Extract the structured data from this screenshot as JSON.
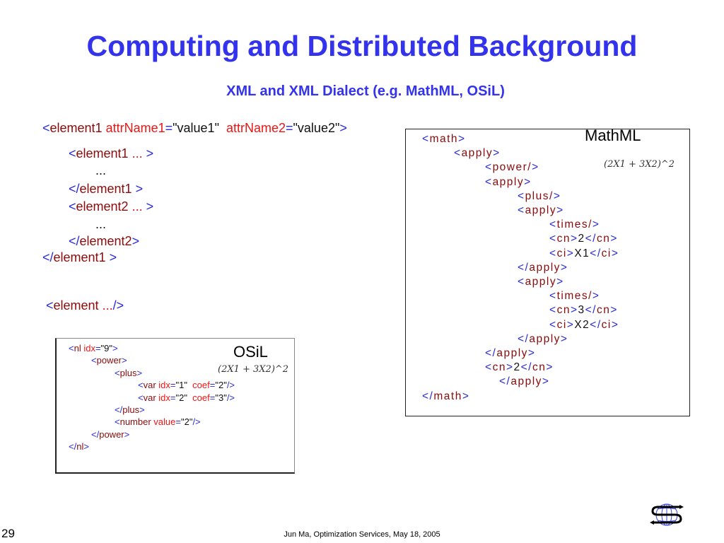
{
  "title": "Computing and  Distributed Background",
  "subtitle": "XML and XML Dialect (e.g. MathML, OSiL)",
  "generic_xml": {
    "lines": [
      [
        [
          "b",
          "<"
        ],
        [
          "t",
          "element1 "
        ],
        [
          "a",
          "attrName1"
        ],
        [
          "b",
          "="
        ],
        [
          "v",
          "\"value1\"  "
        ],
        [
          "a",
          "attrName2"
        ],
        [
          "b",
          "="
        ],
        [
          "v",
          "\"value2\""
        ],
        [
          "b",
          ">"
        ]
      ],
      [
        [
          "b",
          "<"
        ],
        [
          "t",
          "element1 "
        ],
        [
          "a",
          "..."
        ],
        [
          "b",
          " >"
        ]
      ],
      [
        [
          "v",
          "..."
        ]
      ],
      [
        [
          "b",
          "</"
        ],
        [
          "t",
          "element1"
        ],
        [
          "b",
          " >"
        ]
      ],
      [
        [
          "b",
          "<"
        ],
        [
          "t",
          "element2 "
        ],
        [
          "a",
          "..."
        ],
        [
          "b",
          " >"
        ]
      ],
      [
        [
          "v",
          "..."
        ]
      ],
      [
        [
          "b",
          "</"
        ],
        [
          "t",
          "element2"
        ],
        [
          "b",
          ">"
        ]
      ],
      [
        [
          "b",
          "</"
        ],
        [
          "t",
          "element1"
        ],
        [
          "b",
          " >"
        ]
      ],
      [
        [
          "b",
          "<"
        ],
        [
          "t",
          "element "
        ],
        [
          "a",
          "..."
        ],
        [
          "b",
          "/>"
        ]
      ]
    ]
  },
  "osil": {
    "label": "OSiL",
    "formula": "(2X1 + 3X2)^2",
    "lines": [
      [
        [
          "b",
          "<"
        ],
        [
          "t",
          "nl "
        ],
        [
          "a",
          "idx"
        ],
        [
          "b",
          "="
        ],
        [
          "v",
          "\"9\""
        ],
        [
          "b",
          ">"
        ]
      ],
      [
        [
          "b",
          "<"
        ],
        [
          "t",
          "power"
        ],
        [
          "b",
          ">"
        ]
      ],
      [
        [
          "b",
          "<"
        ],
        [
          "t",
          "plus"
        ],
        [
          "b",
          ">"
        ]
      ],
      [
        [
          "b",
          "<"
        ],
        [
          "t",
          "var "
        ],
        [
          "a",
          "idx"
        ],
        [
          "b",
          "="
        ],
        [
          "v",
          "\"1\"  "
        ],
        [
          "a",
          "coef"
        ],
        [
          "b",
          "="
        ],
        [
          "v",
          "\"2\""
        ],
        [
          "b",
          "/>"
        ]
      ],
      [
        [
          "b",
          "<"
        ],
        [
          "t",
          "var "
        ],
        [
          "a",
          "idx"
        ],
        [
          "b",
          "="
        ],
        [
          "v",
          "\"2\"  "
        ],
        [
          "a",
          "coef"
        ],
        [
          "b",
          "="
        ],
        [
          "v",
          "\"3\""
        ],
        [
          "b",
          "/>"
        ]
      ],
      [
        [
          "b",
          "</"
        ],
        [
          "t",
          "plus"
        ],
        [
          "b",
          ">"
        ]
      ],
      [
        [
          "b",
          "<"
        ],
        [
          "t",
          "number "
        ],
        [
          "a",
          "value"
        ],
        [
          "b",
          "="
        ],
        [
          "v",
          "\"2\""
        ],
        [
          "b",
          "/>"
        ]
      ],
      [
        [
          "b",
          "</"
        ],
        [
          "t",
          "power"
        ],
        [
          "b",
          ">"
        ]
      ],
      [
        [
          "b",
          "</"
        ],
        [
          "t",
          "nl"
        ],
        [
          "b",
          ">"
        ]
      ]
    ]
  },
  "mathml": {
    "label": "MathML",
    "formula": "(2X1 + 3X2)^2",
    "lines": [
      [
        [
          "b",
          "<"
        ],
        [
          "t",
          "math"
        ],
        [
          "b",
          ">"
        ]
      ],
      [
        [
          "b",
          "<"
        ],
        [
          "t",
          "apply"
        ],
        [
          "b",
          ">"
        ]
      ],
      [
        [
          "b",
          "<"
        ],
        [
          "t",
          "power/"
        ],
        [
          "b",
          ">"
        ]
      ],
      [
        [
          "b",
          "<"
        ],
        [
          "t",
          "apply"
        ],
        [
          "b",
          ">"
        ]
      ],
      [
        [
          "b",
          "<"
        ],
        [
          "t",
          "plus/"
        ],
        [
          "b",
          ">"
        ]
      ],
      [
        [
          "b",
          "<"
        ],
        [
          "t",
          "apply"
        ],
        [
          "b",
          ">"
        ]
      ],
      [
        [
          "b",
          "<"
        ],
        [
          "t",
          "times/"
        ],
        [
          "b",
          ">"
        ]
      ],
      [
        [
          "b",
          "<"
        ],
        [
          "t",
          "cn"
        ],
        [
          "b",
          ">"
        ],
        [
          "v",
          "2"
        ],
        [
          "b",
          "</"
        ],
        [
          "t",
          "cn"
        ],
        [
          "b",
          ">"
        ]
      ],
      [
        [
          "b",
          "<"
        ],
        [
          "t",
          "ci"
        ],
        [
          "b",
          ">"
        ],
        [
          "v",
          "X1"
        ],
        [
          "b",
          "</"
        ],
        [
          "t",
          "ci"
        ],
        [
          "b",
          ">"
        ]
      ],
      [
        [
          "b",
          "</"
        ],
        [
          "t",
          "apply"
        ],
        [
          "b",
          ">"
        ]
      ],
      [
        [
          "b",
          "<"
        ],
        [
          "t",
          "apply"
        ],
        [
          "b",
          ">"
        ]
      ],
      [
        [
          "b",
          "<"
        ],
        [
          "t",
          "times/"
        ],
        [
          "b",
          ">"
        ]
      ],
      [
        [
          "b",
          "<"
        ],
        [
          "t",
          "cn"
        ],
        [
          "b",
          ">"
        ],
        [
          "v",
          "3"
        ],
        [
          "b",
          "</"
        ],
        [
          "t",
          "cn"
        ],
        [
          "b",
          ">"
        ]
      ],
      [
        [
          "b",
          "<"
        ],
        [
          "t",
          "ci"
        ],
        [
          "b",
          ">"
        ],
        [
          "v",
          "X2"
        ],
        [
          "b",
          "</"
        ],
        [
          "t",
          "ci"
        ],
        [
          "b",
          ">"
        ]
      ],
      [
        [
          "b",
          "</"
        ],
        [
          "t",
          "apply"
        ],
        [
          "b",
          ">"
        ]
      ],
      [
        [
          "b",
          "</"
        ],
        [
          "t",
          "apply"
        ],
        [
          "b",
          ">"
        ]
      ],
      [
        [
          "b",
          "<"
        ],
        [
          "t",
          "cn"
        ],
        [
          "b",
          ">"
        ],
        [
          "v",
          "2"
        ],
        [
          "b",
          "</"
        ],
        [
          "t",
          "cn"
        ],
        [
          "b",
          ">"
        ]
      ],
      [
        [
          "b",
          "</"
        ],
        [
          "t",
          "apply"
        ],
        [
          "b",
          ">"
        ]
      ],
      [
        [
          "b",
          "</"
        ],
        [
          "t",
          "math"
        ],
        [
          "b",
          ">"
        ]
      ]
    ]
  },
  "footer": {
    "page_number": "29",
    "text": "Jun Ma, Optimization Services, May 18, 2005"
  },
  "logo": {
    "icon": "optimization-services-globe-logo",
    "colors": {
      "globe": "#3344dd",
      "swoosh": "#000000"
    }
  }
}
